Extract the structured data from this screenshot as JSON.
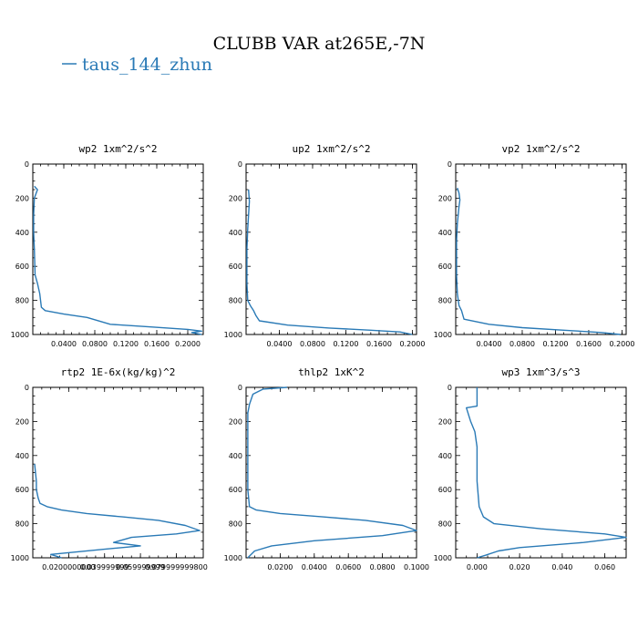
{
  "figure": {
    "title": "CLUBB VAR at265E,-7N",
    "legend": [
      {
        "label": "taus_144_zhun",
        "color": "#2a7ab6"
      }
    ]
  },
  "chart_data": [
    {
      "type": "line",
      "title": "wp2  1xm^2/s^2",
      "xlim": [
        0,
        0.22
      ],
      "ylim": [
        1000,
        0
      ],
      "xticks": [
        0.04,
        0.08,
        0.12,
        0.16,
        0.2
      ],
      "xtick_labels": [
        "0.0400",
        "0.0800",
        "0.1200",
        "0.1600",
        "0.2000"
      ],
      "yticks": [
        0,
        200,
        400,
        600,
        800,
        1000
      ],
      "series": [
        {
          "name": "taus_144_zhun",
          "x": [
            0.002,
            0.006,
            0.002,
            0.001,
            0.001,
            0.002,
            0.003,
            0.006,
            0.009,
            0.01,
            0.011,
            0.016,
            0.04,
            0.07,
            0.1,
            0.15,
            0.2,
            0.218,
            0.205,
            0.218
          ],
          "y": [
            130,
            150,
            200,
            300,
            400,
            500,
            650,
            700,
            760,
            800,
            840,
            860,
            880,
            900,
            940,
            955,
            970,
            980,
            988,
            1000
          ]
        }
      ]
    },
    {
      "type": "line",
      "title": "up2  1xm^2/s^2",
      "xlim": [
        0,
        0.205
      ],
      "ylim": [
        1000,
        0
      ],
      "xticks": [
        0.04,
        0.08,
        0.12,
        0.16,
        0.2
      ],
      "xtick_labels": [
        "0.0400",
        "0.0800",
        "0.1200",
        "0.1600",
        "0.2000"
      ],
      "yticks": [
        0,
        200,
        400,
        600,
        800,
        1000
      ],
      "series": [
        {
          "name": "taus_144_zhun",
          "x": [
            0.003,
            0.004,
            0.003,
            0.002,
            0.001,
            0.001,
            0.002,
            0.005,
            0.009,
            0.012,
            0.016,
            0.05,
            0.1,
            0.15,
            0.185,
            0.2
          ],
          "y": [
            150,
            220,
            300,
            380,
            500,
            700,
            800,
            830,
            860,
            890,
            920,
            945,
            962,
            975,
            985,
            1000
          ]
        }
      ]
    },
    {
      "type": "line",
      "title": "vp2  1xm^2/s^2",
      "xlim": [
        0,
        0.205
      ],
      "ylim": [
        1000,
        0
      ],
      "xticks": [
        0.04,
        0.08,
        0.12,
        0.16,
        0.2
      ],
      "xtick_labels": [
        "0.0400",
        "0.0800",
        "0.1200",
        "0.1600",
        "0.2000"
      ],
      "yticks": [
        0,
        200,
        400,
        600,
        800,
        1000
      ],
      "series": [
        {
          "name": "taus_144_zhun",
          "x": [
            0.002,
            0.004,
            0.005,
            0.004,
            0.002,
            0.001,
            0.001,
            0.002,
            0.004,
            0.007,
            0.01,
            0.04,
            0.08,
            0.13,
            0.175,
            0.198
          ],
          "y": [
            140,
            170,
            210,
            250,
            350,
            450,
            650,
            760,
            830,
            860,
            910,
            940,
            960,
            975,
            988,
            1000
          ]
        }
      ]
    },
    {
      "type": "line",
      "title": "rtp2  1E-6x(kg/kg)^2",
      "xlim": [
        0,
        0.095
      ],
      "ylim": [
        1000,
        0
      ],
      "xticks": [
        0.02,
        0.04,
        0.06,
        0.08
      ],
      "xtick_labels": [
        "0.0200000000",
        "0.039999999",
        "0.059999999",
        "0.079999999800"
      ],
      "yticks": [
        0,
        200,
        400,
        600,
        800,
        1000
      ],
      "series": [
        {
          "name": "taus_144_zhun",
          "x": [
            0.001,
            0.002,
            0.002,
            0.003,
            0.004,
            0.008,
            0.016,
            0.03,
            0.05,
            0.07,
            0.085,
            0.093,
            0.08,
            0.055,
            0.045,
            0.06,
            0.04,
            0.01,
            0.016
          ],
          "y": [
            450,
            550,
            600,
            650,
            680,
            700,
            720,
            740,
            760,
            780,
            810,
            840,
            860,
            880,
            910,
            930,
            950,
            980,
            1000
          ]
        }
      ]
    },
    {
      "type": "line",
      "title": "thlp2  1xK^2",
      "xlim": [
        0,
        0.1
      ],
      "ylim": [
        1000,
        0
      ],
      "xticks": [
        0.02,
        0.04,
        0.06,
        0.08,
        0.1
      ],
      "xtick_labels": [
        "0.0200",
        "0.0400",
        "0.0600",
        "0.0800",
        "0.1000"
      ],
      "yticks": [
        0,
        200,
        400,
        600,
        800,
        1000
      ],
      "series": [
        {
          "name": "taus_144_zhun",
          "x": [
            0.024,
            0.01,
            0.004,
            0.002,
            0.001,
            0.001,
            0.001,
            0.002,
            0.006,
            0.02,
            0.045,
            0.07,
            0.092,
            0.1,
            0.08,
            0.04,
            0.015,
            0.005,
            0.002,
            0.001
          ],
          "y": [
            0,
            10,
            40,
            100,
            150,
            300,
            600,
            700,
            720,
            740,
            760,
            780,
            810,
            840,
            870,
            900,
            930,
            960,
            990,
            1000
          ]
        }
      ]
    },
    {
      "type": "line",
      "title": "wp3  1xm^3/s^3",
      "xlim": [
        -0.01,
        0.07
      ],
      "ylim": [
        1000,
        0
      ],
      "xticks": [
        0.0,
        0.02,
        0.04,
        0.06
      ],
      "xtick_labels": [
        "0.000",
        "0.020",
        "0.040",
        "0.060"
      ],
      "yticks": [
        0,
        200,
        400,
        600,
        800,
        1000
      ],
      "series": [
        {
          "name": "taus_144_zhun",
          "x": [
            0.0,
            0.0,
            -0.005,
            -0.003,
            -0.001,
            0.0,
            0.0,
            0.0,
            0.001,
            0.003,
            0.008,
            0.03,
            0.06,
            0.07,
            0.05,
            0.02,
            0.01,
            0.004,
            0.0
          ],
          "y": [
            0,
            110,
            120,
            200,
            260,
            350,
            450,
            550,
            700,
            760,
            800,
            830,
            860,
            880,
            910,
            940,
            960,
            985,
            1000
          ]
        }
      ]
    }
  ]
}
